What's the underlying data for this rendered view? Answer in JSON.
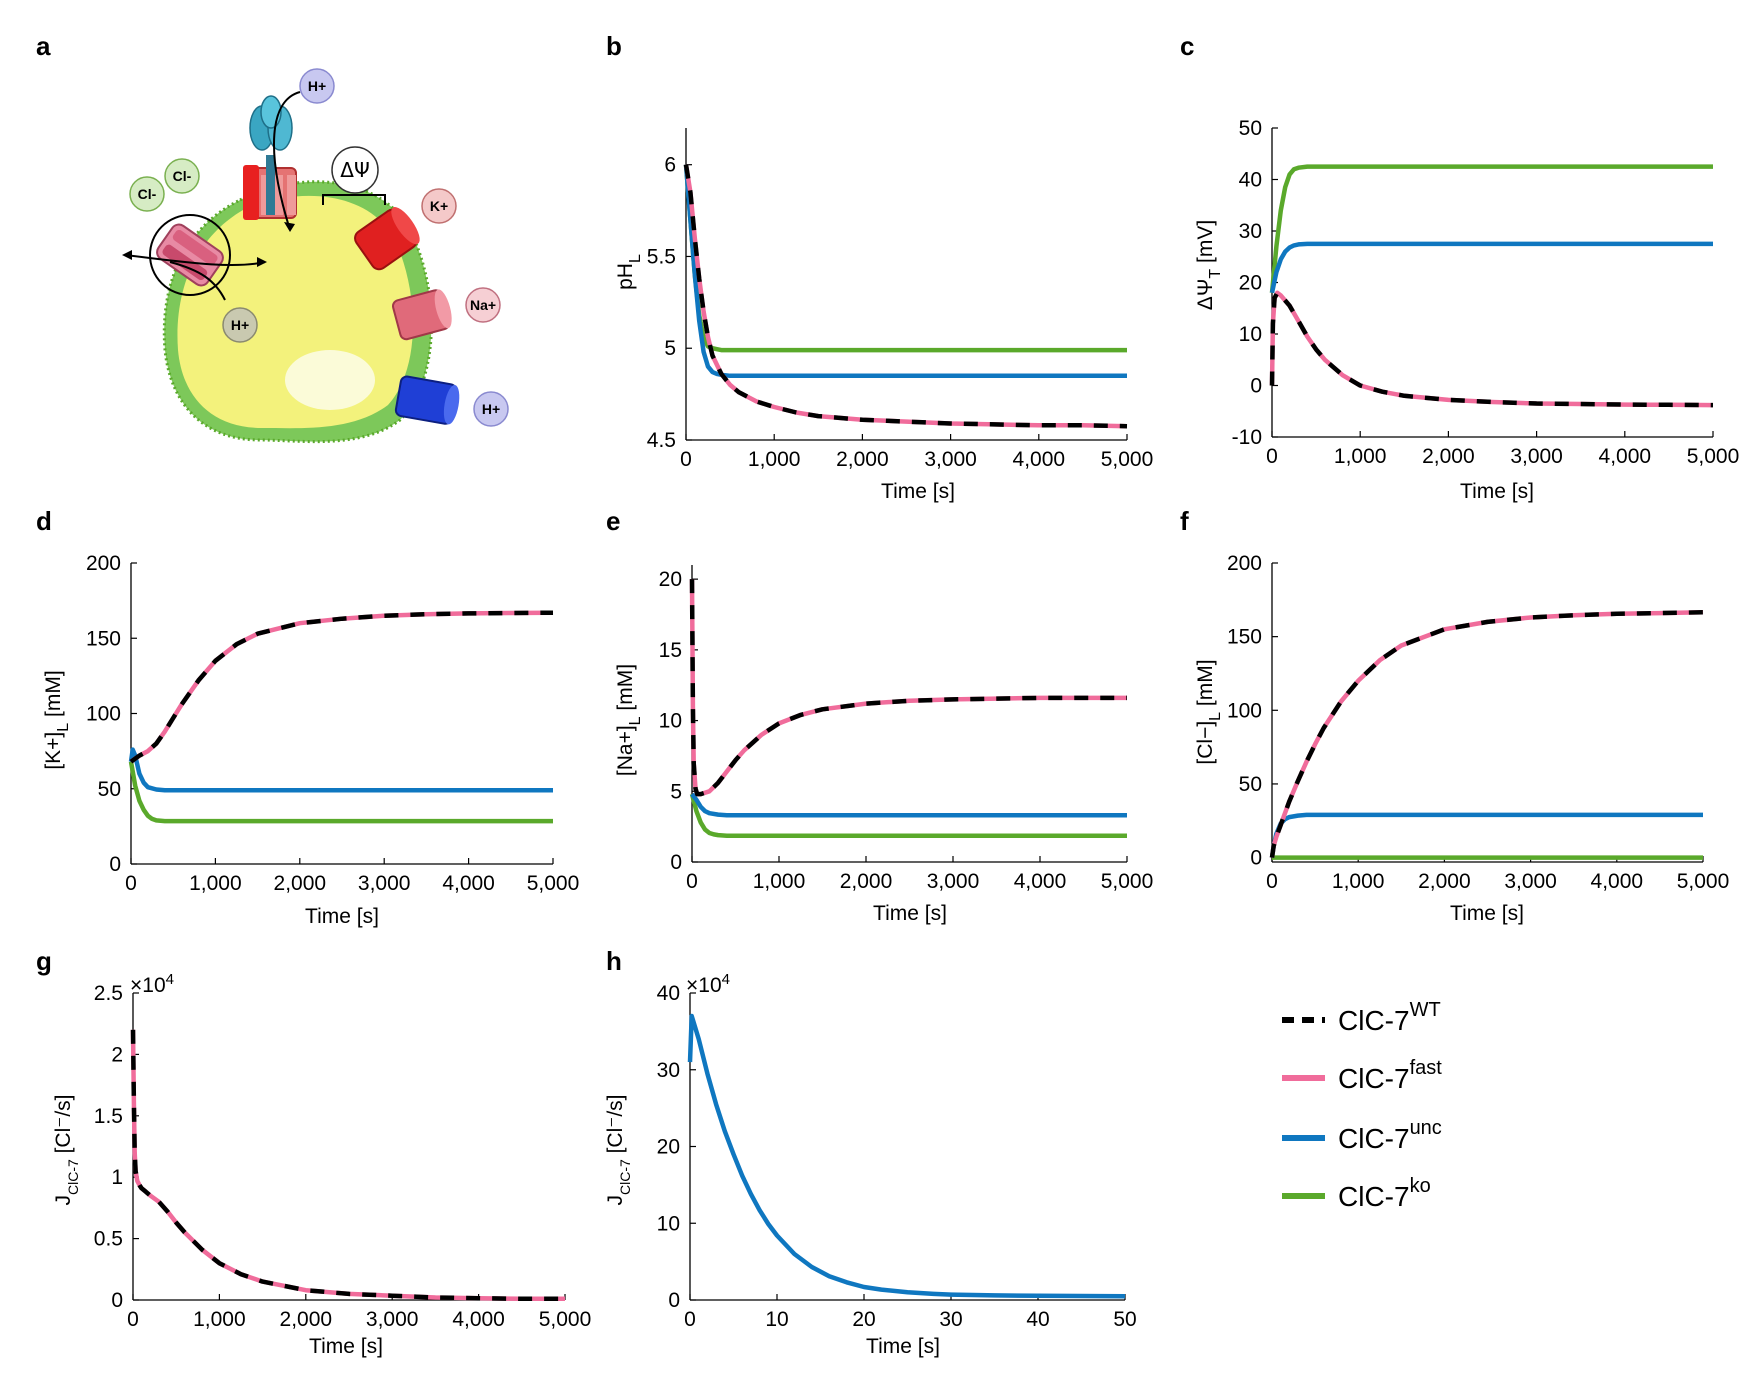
{
  "panel_labels": [
    "a",
    "b",
    "c",
    "d",
    "e",
    "f",
    "g",
    "h"
  ],
  "diagram": {
    "ions": {
      "h_top": "H+",
      "cl_1": "Cl-",
      "cl_2": "Cl-",
      "k": "K+",
      "na": "Na+",
      "h_left": "H+",
      "h_bottom": "H+"
    },
    "potential_label": "ΔΨ",
    "colors": {
      "lumen": "#f2f27a",
      "membrane": "#6cc04a",
      "vatpase": "#3a9fb8",
      "clc7": "#d9607f",
      "k_channel": "#e02020",
      "na_channel": "#e06a7a",
      "h_channel": "#1f3fd6"
    }
  },
  "legend": [
    {
      "name": "ClC-7",
      "sup": "WT",
      "color": "#000000",
      "dashed": true
    },
    {
      "name": "ClC-7",
      "sup": "fast",
      "color": "#f06c9b",
      "dashed": false
    },
    {
      "name": "ClC-7",
      "sup": "unc",
      "color": "#0f77c0",
      "dashed": false
    },
    {
      "name": "ClC-7",
      "sup": "ko",
      "color": "#5aa92b",
      "dashed": false
    }
  ],
  "series_colors": {
    "wt": "#000000",
    "fast": "#f06c9b",
    "unc": "#0f77c0",
    "ko": "#5aa92b"
  },
  "chart_data": [
    {
      "id": "b",
      "type": "line",
      "xlabel": "Time [s]",
      "ylabel": "pH",
      "ylabel_sub": "L",
      "xlim": [
        0,
        5000
      ],
      "ylim": [
        4.5,
        6.2
      ],
      "xticks": [
        0,
        1000,
        2000,
        3000,
        4000,
        5000
      ],
      "xticklabels": [
        "0",
        "1,000",
        "2,000",
        "3,000",
        "4,000",
        "5,000"
      ],
      "yticks": [
        4.5,
        5,
        5.5,
        6
      ],
      "yticklabels": [
        "4.5",
        "5",
        "5.5",
        "6"
      ],
      "series": [
        {
          "name": "ClC-7 WT/fast",
          "key": "wtfast",
          "x": [
            0,
            50,
            100,
            150,
            200,
            250,
            300,
            400,
            500,
            600,
            800,
            1000,
            1250,
            1500,
            2000,
            2500,
            3000,
            3500,
            4000,
            4500,
            5000
          ],
          "y": [
            6.0,
            5.85,
            5.6,
            5.38,
            5.2,
            5.06,
            4.96,
            4.86,
            4.8,
            4.76,
            4.71,
            4.68,
            4.65,
            4.63,
            4.61,
            4.6,
            4.59,
            4.585,
            4.58,
            4.58,
            4.575
          ]
        },
        {
          "name": "ClC-7 unc",
          "key": "unc",
          "x": [
            0,
            50,
            100,
            150,
            200,
            250,
            300,
            350,
            400,
            500,
            700,
            1000,
            2000,
            3000,
            4000,
            5000
          ],
          "y": [
            6.0,
            5.7,
            5.4,
            5.15,
            4.98,
            4.9,
            4.87,
            4.86,
            4.855,
            4.85,
            4.85,
            4.85,
            4.85,
            4.85,
            4.85,
            4.85
          ]
        },
        {
          "name": "ClC-7 ko",
          "key": "ko",
          "x": [
            0,
            50,
            100,
            150,
            200,
            250,
            300,
            350,
            400,
            500,
            700,
            1000,
            2000,
            3000,
            4000,
            5000
          ],
          "y": [
            6.0,
            5.7,
            5.4,
            5.18,
            5.06,
            5.01,
            5.0,
            4.995,
            4.99,
            4.99,
            4.99,
            4.99,
            4.99,
            4.99,
            4.99,
            4.99
          ]
        }
      ]
    },
    {
      "id": "c",
      "type": "line",
      "xlabel": "Time [s]",
      "ylabel": "ΔΨ",
      "ylabel_sub": "T",
      "ylabel_unit": " [mV]",
      "xlim": [
        0,
        5000
      ],
      "ylim": [
        -10,
        50
      ],
      "xticks": [
        0,
        1000,
        2000,
        3000,
        4000,
        5000
      ],
      "xticklabels": [
        "0",
        "1,000",
        "2,000",
        "3,000",
        "4,000",
        "5,000"
      ],
      "yticks": [
        -10,
        0,
        10,
        20,
        30,
        40,
        50
      ],
      "yticklabels": [
        "-10",
        "0",
        "10",
        "20",
        "30",
        "40",
        "50"
      ],
      "series": [
        {
          "name": "ClC-7 WT/fast",
          "key": "wtfast",
          "x": [
            0,
            10,
            30,
            60,
            100,
            200,
            300,
            400,
            500,
            600,
            800,
            1000,
            1250,
            1500,
            2000,
            2500,
            3000,
            3500,
            4000,
            4500,
            5000
          ],
          "y": [
            0,
            12,
            17,
            18,
            17.5,
            15.5,
            12.5,
            9.5,
            7,
            5,
            2,
            0,
            -1.2,
            -2,
            -2.8,
            -3.2,
            -3.5,
            -3.6,
            -3.7,
            -3.75,
            -3.8
          ]
        },
        {
          "name": "ClC-7 unc",
          "key": "unc",
          "x": [
            0,
            50,
            100,
            150,
            200,
            250,
            300,
            400,
            500,
            700,
            1000,
            2000,
            3000,
            4000,
            5000
          ],
          "y": [
            18,
            22,
            24.5,
            26,
            26.8,
            27.2,
            27.4,
            27.5,
            27.5,
            27.5,
            27.5,
            27.5,
            27.5,
            27.5,
            27.5
          ]
        },
        {
          "name": "ClC-7 ko",
          "key": "ko",
          "x": [
            0,
            50,
            100,
            150,
            200,
            250,
            300,
            400,
            500,
            700,
            1000,
            2000,
            3000,
            4000,
            5000
          ],
          "y": [
            18,
            27,
            34,
            38.5,
            41,
            42,
            42.3,
            42.5,
            42.5,
            42.5,
            42.5,
            42.5,
            42.5,
            42.5,
            42.5
          ]
        }
      ]
    },
    {
      "id": "d",
      "type": "line",
      "xlabel": "Time [s]",
      "ylabel": "[K+]",
      "ylabel_sub": "L",
      "ylabel_unit": " [mM]",
      "xlim": [
        0,
        5000
      ],
      "ylim": [
        0,
        200
      ],
      "xticks": [
        0,
        1000,
        2000,
        3000,
        4000,
        5000
      ],
      "xticklabels": [
        "0",
        "1,000",
        "2,000",
        "3,000",
        "4,000",
        "5,000"
      ],
      "yticks": [
        0,
        50,
        100,
        150,
        200
      ],
      "yticklabels": [
        "0",
        "50",
        "100",
        "150",
        "200"
      ],
      "series": [
        {
          "name": "ClC-7 WT/fast",
          "key": "wtfast",
          "x": [
            0,
            100,
            200,
            300,
            400,
            500,
            600,
            800,
            1000,
            1250,
            1500,
            2000,
            2500,
            3000,
            3500,
            4000,
            4500,
            5000
          ],
          "y": [
            68,
            72,
            75,
            80,
            88,
            97,
            106,
            122,
            135,
            146,
            153,
            160,
            163,
            165,
            166,
            166.5,
            166.8,
            167
          ]
        },
        {
          "name": "ClC-7 unc",
          "key": "unc",
          "x": [
            0,
            20,
            50,
            100,
            150,
            200,
            300,
            400,
            500,
            700,
            1000,
            2000,
            3000,
            4000,
            5000
          ],
          "y": [
            68,
            76,
            72,
            60,
            54,
            51,
            49.5,
            49,
            49,
            49,
            49,
            49,
            49,
            49,
            49
          ]
        },
        {
          "name": "ClC-7 ko",
          "key": "ko",
          "x": [
            0,
            50,
            100,
            150,
            200,
            250,
            300,
            400,
            500,
            700,
            1000,
            2000,
            3000,
            4000,
            5000
          ],
          "y": [
            68,
            52,
            42,
            36,
            32,
            30,
            29,
            28.5,
            28.5,
            28.5,
            28.5,
            28.5,
            28.5,
            28.5,
            28.5
          ]
        }
      ]
    },
    {
      "id": "e",
      "type": "line",
      "xlabel": "Time [s]",
      "ylabel": "[Na+]",
      "ylabel_sub": "L",
      "ylabel_unit": " [mM]",
      "xlim": [
        0,
        5000
      ],
      "ylim": [
        0,
        21
      ],
      "xticks": [
        0,
        1000,
        2000,
        3000,
        4000,
        5000
      ],
      "xticklabels": [
        "0",
        "1,000",
        "2,000",
        "3,000",
        "4,000",
        "5,000"
      ],
      "yticks": [
        0,
        5,
        10,
        15,
        20
      ],
      "yticklabels": [
        "0",
        "5",
        "10",
        "15",
        "20"
      ],
      "series": [
        {
          "name": "ClC-7 WT/fast",
          "key": "wtfast",
          "x": [
            0,
            10,
            20,
            40,
            60,
            100,
            200,
            300,
            400,
            500,
            600,
            800,
            1000,
            1250,
            1500,
            2000,
            2500,
            3000,
            3500,
            4000,
            4500,
            5000
          ],
          "y": [
            20,
            11,
            7,
            5.2,
            4.8,
            4.8,
            5,
            5.6,
            6.4,
            7.2,
            7.9,
            9,
            9.8,
            10.4,
            10.8,
            11.2,
            11.4,
            11.5,
            11.55,
            11.6,
            11.6,
            11.6
          ]
        },
        {
          "name": "ClC-7 unc",
          "key": "unc",
          "x": [
            0,
            50,
            100,
            150,
            200,
            300,
            400,
            500,
            700,
            1000,
            2000,
            3000,
            4000,
            5000
          ],
          "y": [
            4.8,
            4.4,
            3.9,
            3.6,
            3.45,
            3.35,
            3.3,
            3.3,
            3.3,
            3.3,
            3.3,
            3.3,
            3.3,
            3.3
          ]
        },
        {
          "name": "ClC-7 ko",
          "key": "ko",
          "x": [
            0,
            50,
            100,
            150,
            200,
            250,
            300,
            400,
            500,
            700,
            1000,
            2000,
            3000,
            4000,
            5000
          ],
          "y": [
            4.8,
            3.6,
            2.8,
            2.3,
            2.05,
            1.95,
            1.9,
            1.85,
            1.85,
            1.85,
            1.85,
            1.85,
            1.85,
            1.85,
            1.85
          ]
        }
      ]
    },
    {
      "id": "f",
      "type": "line",
      "xlabel": "Time [s]",
      "ylabel": "[Cl−]",
      "ylabel_sub": "L",
      "ylabel_unit": " [mM]",
      "xlim": [
        0,
        5000
      ],
      "ylim": [
        -3,
        200
      ],
      "xticks": [
        0,
        1000,
        2000,
        3000,
        4000,
        5000
      ],
      "xticklabels": [
        "0",
        "1,000",
        "2,000",
        "3,000",
        "4,000",
        "5,000"
      ],
      "yticks": [
        0,
        50,
        100,
        150,
        200
      ],
      "yticklabels": [
        "0",
        "50",
        "100",
        "150",
        "200"
      ],
      "series": [
        {
          "name": "ClC-7 WT/fast",
          "key": "wtfast",
          "x": [
            0,
            20,
            50,
            100,
            200,
            300,
            400,
            500,
            600,
            800,
            1000,
            1250,
            1500,
            2000,
            2500,
            3000,
            3500,
            4000,
            4500,
            5000
          ],
          "y": [
            0,
            8,
            14,
            22,
            38,
            52,
            65,
            77,
            88,
            106,
            120,
            134,
            144,
            155,
            160,
            163,
            164.5,
            165.5,
            166,
            166.5
          ]
        },
        {
          "name": "ClC-7 unc",
          "key": "unc",
          "x": [
            0,
            20,
            50,
            100,
            150,
            200,
            300,
            400,
            500,
            700,
            1000,
            2000,
            3000,
            4000,
            5000
          ],
          "y": [
            0,
            8,
            16,
            23,
            26,
            27.5,
            28.5,
            29,
            29,
            29,
            29,
            29,
            29,
            29,
            29
          ]
        },
        {
          "name": "ClC-7 ko",
          "key": "ko",
          "x": [
            0,
            1000,
            2000,
            3000,
            4000,
            5000
          ],
          "y": [
            0,
            0,
            0,
            0,
            0,
            0
          ]
        }
      ]
    },
    {
      "id": "g",
      "type": "line",
      "xlabel": "Time [s]",
      "ylabel": "J",
      "ylabel_sub": "ClC-7",
      "ylabel_unit": "  [Cl⁻/s]",
      "exponent": "×10",
      "exponent_power": "4",
      "xlim": [
        0,
        5000
      ],
      "ylim": [
        0,
        2.5
      ],
      "xticks": [
        0,
        1000,
        2000,
        3000,
        4000,
        5000
      ],
      "xticklabels": [
        "0",
        "1,000",
        "2,000",
        "3,000",
        "4,000",
        "5,000"
      ],
      "yticks": [
        0,
        0.5,
        1,
        1.5,
        2,
        2.5
      ],
      "yticklabels": [
        "0",
        "0.5",
        "1",
        "1.5",
        "2",
        "2.5"
      ],
      "series": [
        {
          "name": "ClC-7 WT/fast",
          "key": "wtfast",
          "x": [
            0,
            10,
            20,
            30,
            50,
            80,
            100,
            150,
            200,
            300,
            400,
            500,
            600,
            800,
            1000,
            1250,
            1500,
            2000,
            2500,
            3000,
            3500,
            4000,
            4500,
            5000
          ],
          "y": [
            2.2,
            1.6,
            1.2,
            1.05,
            0.97,
            0.93,
            0.91,
            0.88,
            0.85,
            0.8,
            0.72,
            0.63,
            0.55,
            0.41,
            0.3,
            0.21,
            0.15,
            0.08,
            0.05,
            0.035,
            0.02,
            0.015,
            0.01,
            0.01
          ]
        }
      ]
    },
    {
      "id": "h",
      "type": "line",
      "xlabel": "Time [s]",
      "ylabel": "J",
      "ylabel_sub": "ClC-7",
      "ylabel_unit": "  [Cl⁻/s]",
      "exponent": "×10",
      "exponent_power": "4",
      "xlim": [
        0,
        50
      ],
      "ylim": [
        0,
        40
      ],
      "xticks": [
        0,
        10,
        20,
        30,
        40,
        50
      ],
      "xticklabels": [
        "0",
        "10",
        "20",
        "30",
        "40",
        "50"
      ],
      "yticks": [
        0,
        10,
        20,
        30,
        40
      ],
      "yticklabels": [
        "0",
        "10",
        "20",
        "30",
        "40"
      ],
      "series": [
        {
          "name": "ClC-7 unc",
          "key": "unc",
          "x": [
            0,
            0.2,
            1,
            2,
            3,
            4,
            5,
            6,
            7,
            8,
            9,
            10,
            12,
            14,
            16,
            18,
            20,
            22,
            25,
            28,
            30,
            35,
            40,
            45,
            50
          ],
          "y": [
            31,
            37,
            34,
            29.5,
            25.5,
            22,
            19,
            16.2,
            13.8,
            11.7,
            9.9,
            8.4,
            6,
            4.3,
            3.1,
            2.3,
            1.7,
            1.35,
            1.0,
            0.8,
            0.7,
            0.6,
            0.55,
            0.52,
            0.5
          ]
        }
      ]
    }
  ]
}
